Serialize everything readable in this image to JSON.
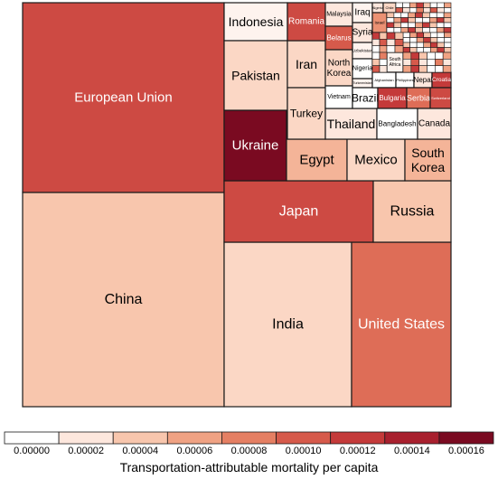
{
  "chart_data": {
    "type": "treemap",
    "title": "",
    "colorbar": {
      "label": "Transportation-attributable mortality per capita",
      "ticks": [
        "0.00000",
        "0.00002",
        "0.00004",
        "0.00006",
        "0.00008",
        "0.00010",
        "0.00012",
        "0.00014",
        "0.00016"
      ],
      "colors": [
        "#ffffff",
        "#fde7dd",
        "#f8c6ad",
        "#f0a283",
        "#e57f63",
        "#d65a4b",
        "#c43a3a",
        "#a8202e",
        "#7a0a21"
      ]
    },
    "cells": [
      {
        "name": "European Union",
        "value": 0.00011
      },
      {
        "name": "China",
        "value": 4e-05
      },
      {
        "name": "India",
        "value": 3e-05
      },
      {
        "name": "United States",
        "value": 9e-05
      },
      {
        "name": "Japan",
        "value": 0.00011
      },
      {
        "name": "Russia",
        "value": 4e-05
      },
      {
        "name": "Ukraine",
        "value": 0.00016
      },
      {
        "name": "Egypt",
        "value": 5e-05
      },
      {
        "name": "Mexico",
        "value": 3e-05
      },
      {
        "name": "South Korea",
        "value": 5e-05
      },
      {
        "name": "Indonesia",
        "value": 1e-05
      },
      {
        "name": "Pakistan",
        "value": 3e-05
      },
      {
        "name": "Iran",
        "value": 3e-05
      },
      {
        "name": "Turkey",
        "value": 3e-05
      },
      {
        "name": "Thailand",
        "value": 2e-05
      },
      {
        "name": "Romania",
        "value": 0.00011
      },
      {
        "name": "Malaysia",
        "value": 2e-05
      },
      {
        "name": "Iraq",
        "value": 1e-05
      },
      {
        "name": "Algeria",
        "value": 2e-05
      },
      {
        "name": "Chile",
        "value": 3e-05
      },
      {
        "name": "Belarus",
        "value": 0.0001
      },
      {
        "name": "Syria",
        "value": 2e-05
      },
      {
        "name": "Israel",
        "value": 7e-05
      },
      {
        "name": "North Korea",
        "value": 3e-05
      },
      {
        "name": "Uzbekistan",
        "value": 1e-05
      },
      {
        "name": "Nigeria",
        "value": 0.0
      },
      {
        "name": "Turkmenistan",
        "value": 1e-05
      },
      {
        "name": "South Africa",
        "value": 1e-05
      },
      {
        "name": "Vietnam",
        "value": 0.0
      },
      {
        "name": "Brazil",
        "value": 0.0
      },
      {
        "name": "Afghanistan",
        "value": 0.0
      },
      {
        "name": "Philippines",
        "value": 0.0
      },
      {
        "name": "Nepal",
        "value": 2e-05
      },
      {
        "name": "Croatia",
        "value": 0.00012
      },
      {
        "name": "Bulgaria",
        "value": 0.00012
      },
      {
        "name": "Serbia",
        "value": 9e-05
      },
      {
        "name": "Switzerland",
        "value": 0.00011
      },
      {
        "name": "Bangladesh",
        "value": 0.0
      },
      {
        "name": "Canada",
        "value": 2e-05
      }
    ]
  }
}
